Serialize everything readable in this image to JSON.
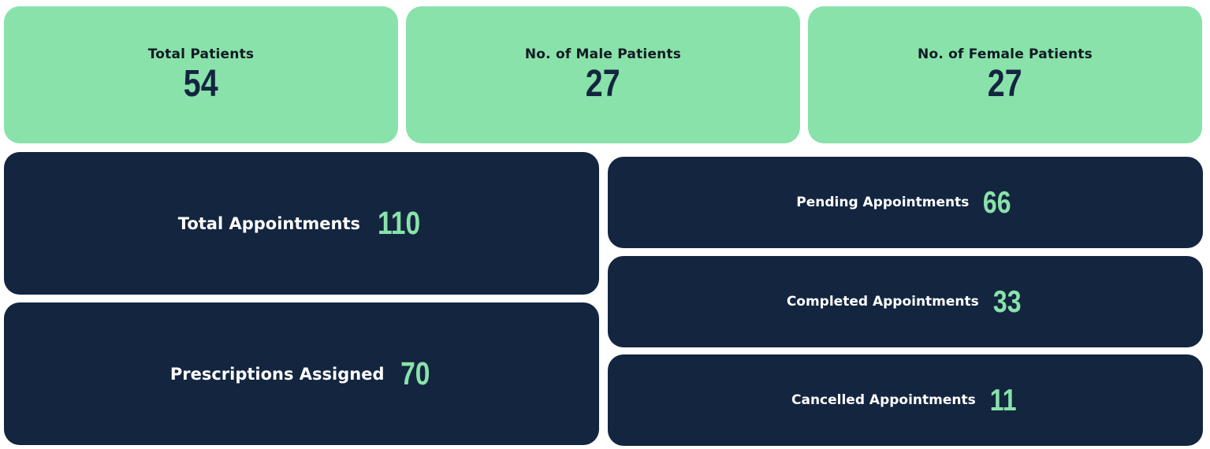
{
  "colors": {
    "accent_green": "#89e2aa",
    "dark_navy": "#13253f"
  },
  "patients": {
    "total_label": "Total Patients",
    "total_value": "54",
    "male_label": "No. of Male Patients",
    "male_value": "27",
    "female_label": "No. of Female Patients",
    "female_value": "27"
  },
  "appointments": {
    "total_label": "Total Appointments",
    "total_value": "110",
    "pending_label": "Pending Appointments",
    "pending_value": "66",
    "completed_label": "Completed Appointments",
    "completed_value": "33",
    "cancelled_label": "Cancelled Appointments",
    "cancelled_value": "11"
  },
  "prescriptions": {
    "label": "Prescriptions Assigned",
    "value": "70"
  }
}
